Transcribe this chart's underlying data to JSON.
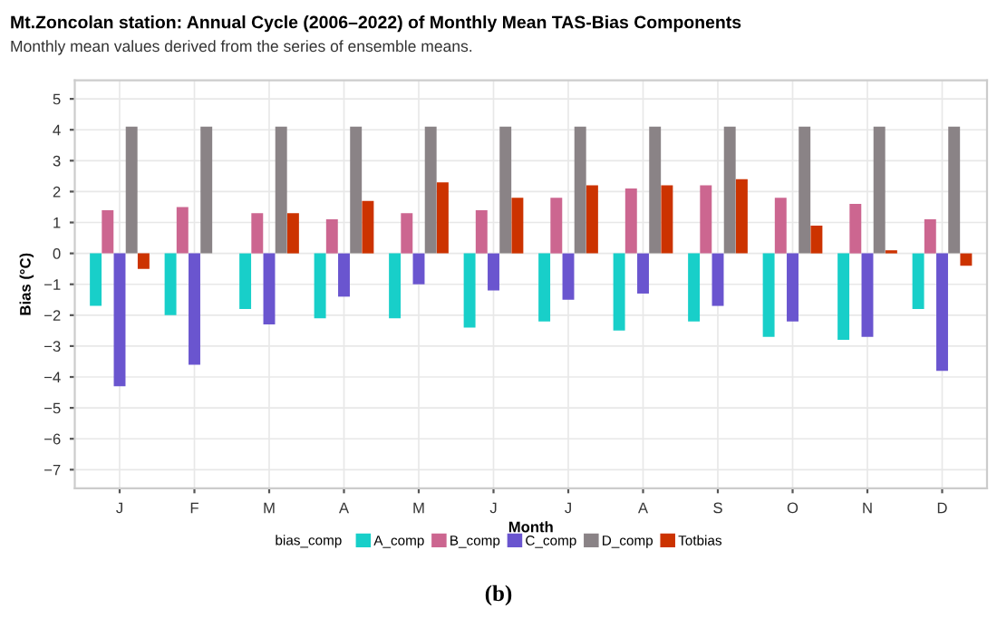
{
  "chart_data": {
    "type": "bar",
    "title": "Mt.Zoncolan station: Annual Cycle (2006–2022) of Monthly Mean TAS-Bias Components",
    "subtitle": "Monthly mean values derived from the series of ensemble means.",
    "xlabel": "Month",
    "ylabel": "Bias (°C)",
    "legend_title": "bias_comp",
    "legend": "bottom",
    "grid": true,
    "categories": [
      "J",
      "F",
      "M",
      "A",
      "M",
      "J",
      "J",
      "A",
      "S",
      "O",
      "N",
      "D"
    ],
    "series": [
      {
        "name": "A_comp",
        "color": "#18cfc9",
        "values": [
          -1.7,
          -2.0,
          -1.8,
          -2.1,
          -2.1,
          -2.4,
          -2.2,
          -2.5,
          -2.2,
          -2.7,
          -2.8,
          -1.8
        ]
      },
      {
        "name": "B_comp",
        "color": "#cc6690",
        "values": [
          1.4,
          1.5,
          1.3,
          1.1,
          1.3,
          1.4,
          1.8,
          2.1,
          2.2,
          1.8,
          1.6,
          1.1
        ]
      },
      {
        "name": "C_comp",
        "color": "#6a55cf",
        "values": [
          -4.3,
          -3.6,
          -2.3,
          -1.4,
          -1.0,
          -1.2,
          -1.5,
          -1.3,
          -1.7,
          -2.2,
          -2.7,
          -3.8
        ]
      },
      {
        "name": "D_comp",
        "color": "#8a8386",
        "values": [
          4.1,
          4.1,
          4.1,
          4.1,
          4.1,
          4.1,
          4.1,
          4.1,
          4.1,
          4.1,
          4.1,
          4.1
        ]
      },
      {
        "name": "Totbias",
        "color": "#cc3300",
        "values": [
          -0.5,
          null,
          1.3,
          1.7,
          2.3,
          1.8,
          2.2,
          2.2,
          2.4,
          0.9,
          0.1,
          -0.4
        ]
      }
    ],
    "ylim": [
      -7.6,
      5.6
    ],
    "yticks": [
      -7,
      -6,
      -5,
      -4,
      -3,
      -2,
      -1,
      0,
      1,
      2,
      3,
      4,
      5
    ],
    "annotations": [
      "(b)"
    ]
  }
}
